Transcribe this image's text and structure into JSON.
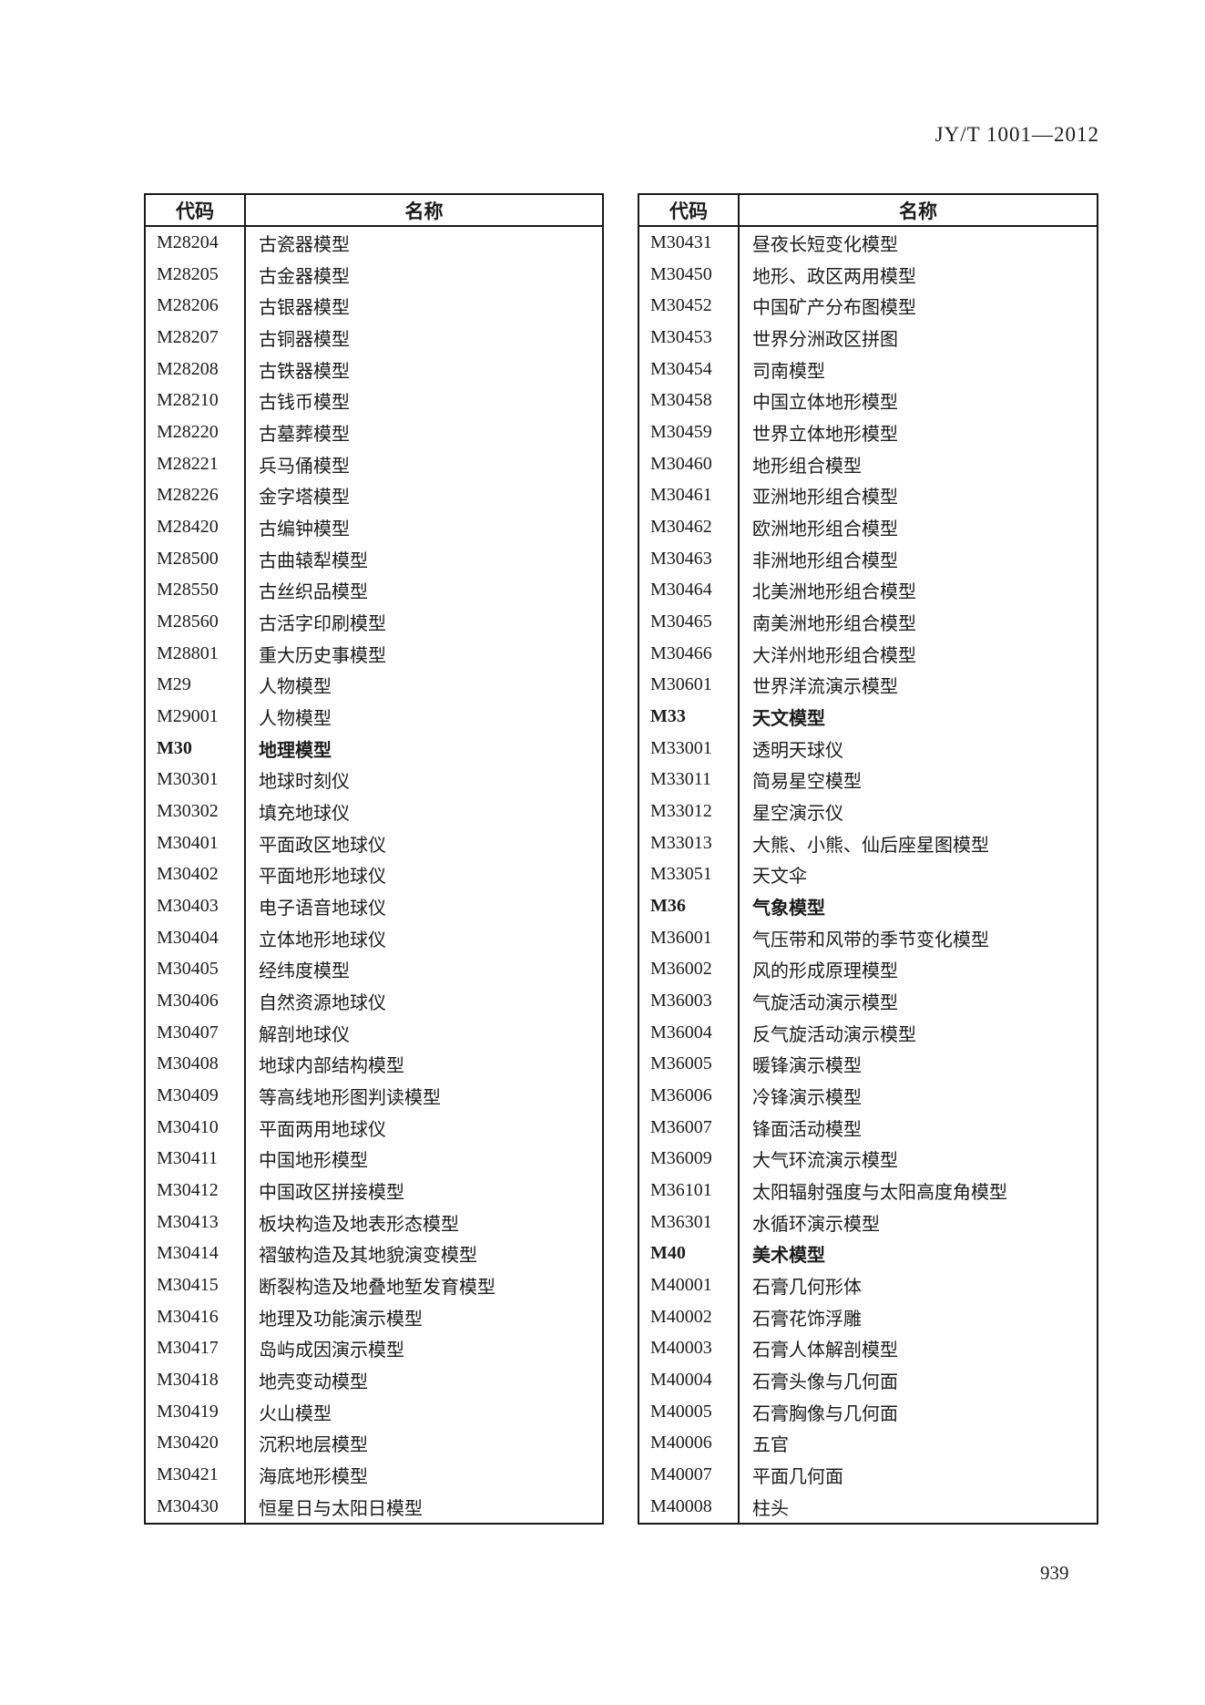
{
  "header": {
    "doc_number": "JY/T 1001—2012"
  },
  "footer": {
    "page_number": "939"
  },
  "tables": [
    {
      "headers": {
        "code": "代码",
        "name": "名称"
      },
      "rows": [
        {
          "code": "M28204",
          "name": "古瓷器模型",
          "bold": false
        },
        {
          "code": "M28205",
          "name": "古金器模型",
          "bold": false
        },
        {
          "code": "M28206",
          "name": "古银器模型",
          "bold": false
        },
        {
          "code": "M28207",
          "name": "古铜器模型",
          "bold": false
        },
        {
          "code": "M28208",
          "name": "古铁器模型",
          "bold": false
        },
        {
          "code": "M28210",
          "name": "古钱币模型",
          "bold": false
        },
        {
          "code": "M28220",
          "name": "古墓葬模型",
          "bold": false
        },
        {
          "code": "M28221",
          "name": "兵马俑模型",
          "bold": false
        },
        {
          "code": "M28226",
          "name": "金字塔模型",
          "bold": false
        },
        {
          "code": "M28420",
          "name": "古编钟模型",
          "bold": false
        },
        {
          "code": "M28500",
          "name": "古曲辕犁模型",
          "bold": false
        },
        {
          "code": "M28550",
          "name": "古丝织品模型",
          "bold": false
        },
        {
          "code": "M28560",
          "name": "古活字印刷模型",
          "bold": false
        },
        {
          "code": "M28801",
          "name": "重大历史事模型",
          "bold": false
        },
        {
          "code": "M29",
          "name": "人物模型",
          "bold": false
        },
        {
          "code": "M29001",
          "name": "人物模型",
          "bold": false
        },
        {
          "code": "M30",
          "name": "地理模型",
          "bold": true
        },
        {
          "code": "M30301",
          "name": "地球时刻仪",
          "bold": false
        },
        {
          "code": "M30302",
          "name": "填充地球仪",
          "bold": false
        },
        {
          "code": "M30401",
          "name": "平面政区地球仪",
          "bold": false
        },
        {
          "code": "M30402",
          "name": "平面地形地球仪",
          "bold": false
        },
        {
          "code": "M30403",
          "name": "电子语音地球仪",
          "bold": false
        },
        {
          "code": "M30404",
          "name": "立体地形地球仪",
          "bold": false
        },
        {
          "code": "M30405",
          "name": "经纬度模型",
          "bold": false
        },
        {
          "code": "M30406",
          "name": "自然资源地球仪",
          "bold": false
        },
        {
          "code": "M30407",
          "name": "解剖地球仪",
          "bold": false
        },
        {
          "code": "M30408",
          "name": "地球内部结构模型",
          "bold": false
        },
        {
          "code": "M30409",
          "name": "等高线地形图判读模型",
          "bold": false
        },
        {
          "code": "M30410",
          "name": "平面两用地球仪",
          "bold": false
        },
        {
          "code": "M30411",
          "name": "中国地形模型",
          "bold": false
        },
        {
          "code": "M30412",
          "name": "中国政区拼接模型",
          "bold": false
        },
        {
          "code": "M30413",
          "name": "板块构造及地表形态模型",
          "bold": false
        },
        {
          "code": "M30414",
          "name": "褶皱构造及其地貌演变模型",
          "bold": false
        },
        {
          "code": "M30415",
          "name": "断裂构造及地叠地堑发育模型",
          "bold": false
        },
        {
          "code": "M30416",
          "name": "地理及功能演示模型",
          "bold": false
        },
        {
          "code": "M30417",
          "name": "岛屿成因演示模型",
          "bold": false
        },
        {
          "code": "M30418",
          "name": "地壳变动模型",
          "bold": false
        },
        {
          "code": "M30419",
          "name": "火山模型",
          "bold": false
        },
        {
          "code": "M30420",
          "name": "沉积地层模型",
          "bold": false
        },
        {
          "code": "M30421",
          "name": "海底地形模型",
          "bold": false
        },
        {
          "code": "M30430",
          "name": "恒星日与太阳日模型",
          "bold": false
        }
      ]
    },
    {
      "headers": {
        "code": "代码",
        "name": "名称"
      },
      "rows": [
        {
          "code": "M30431",
          "name": "昼夜长短变化模型",
          "bold": false
        },
        {
          "code": "M30450",
          "name": "地形、政区两用模型",
          "bold": false
        },
        {
          "code": "M30452",
          "name": "中国矿产分布图模型",
          "bold": false
        },
        {
          "code": "M30453",
          "name": "世界分洲政区拼图",
          "bold": false
        },
        {
          "code": "M30454",
          "name": "司南模型",
          "bold": false
        },
        {
          "code": "M30458",
          "name": "中国立体地形模型",
          "bold": false
        },
        {
          "code": "M30459",
          "name": "世界立体地形模型",
          "bold": false
        },
        {
          "code": "M30460",
          "name": "地形组合模型",
          "bold": false
        },
        {
          "code": "M30461",
          "name": "亚洲地形组合模型",
          "bold": false
        },
        {
          "code": "M30462",
          "name": "欧洲地形组合模型",
          "bold": false
        },
        {
          "code": "M30463",
          "name": "非洲地形组合模型",
          "bold": false
        },
        {
          "code": "M30464",
          "name": "北美洲地形组合模型",
          "bold": false
        },
        {
          "code": "M30465",
          "name": "南美洲地形组合模型",
          "bold": false
        },
        {
          "code": "M30466",
          "name": "大洋州地形组合模型",
          "bold": false
        },
        {
          "code": "M30601",
          "name": "世界洋流演示模型",
          "bold": false
        },
        {
          "code": "M33",
          "name": "天文模型",
          "bold": true
        },
        {
          "code": "M33001",
          "name": "透明天球仪",
          "bold": false
        },
        {
          "code": "M33011",
          "name": "简易星空模型",
          "bold": false
        },
        {
          "code": "M33012",
          "name": "星空演示仪",
          "bold": false
        },
        {
          "code": "M33013",
          "name": "大熊、小熊、仙后座星图模型",
          "bold": false
        },
        {
          "code": "M33051",
          "name": "天文伞",
          "bold": false
        },
        {
          "code": "M36",
          "name": "气象模型",
          "bold": true
        },
        {
          "code": "M36001",
          "name": "气压带和风带的季节变化模型",
          "bold": false
        },
        {
          "code": "M36002",
          "name": "风的形成原理模型",
          "bold": false
        },
        {
          "code": "M36003",
          "name": "气旋活动演示模型",
          "bold": false
        },
        {
          "code": "M36004",
          "name": "反气旋活动演示模型",
          "bold": false
        },
        {
          "code": "M36005",
          "name": "暖锋演示模型",
          "bold": false
        },
        {
          "code": "M36006",
          "name": "冷锋演示模型",
          "bold": false
        },
        {
          "code": "M36007",
          "name": "锋面活动模型",
          "bold": false
        },
        {
          "code": "M36009",
          "name": "大气环流演示模型",
          "bold": false
        },
        {
          "code": "M36101",
          "name": "太阳辐射强度与太阳高度角模型",
          "bold": false
        },
        {
          "code": "M36301",
          "name": "水循环演示模型",
          "bold": false
        },
        {
          "code": "M40",
          "name": "美术模型",
          "bold": true
        },
        {
          "code": "M40001",
          "name": "石膏几何形体",
          "bold": false
        },
        {
          "code": "M40002",
          "name": "石膏花饰浮雕",
          "bold": false
        },
        {
          "code": "M40003",
          "name": "石膏人体解剖模型",
          "bold": false
        },
        {
          "code": "M40004",
          "name": "石膏头像与几何面",
          "bold": false
        },
        {
          "code": "M40005",
          "name": "石膏胸像与几何面",
          "bold": false
        },
        {
          "code": "M40006",
          "name": "五官",
          "bold": false
        },
        {
          "code": "M40007",
          "name": "平面几何面",
          "bold": false
        },
        {
          "code": "M40008",
          "name": "柱头",
          "bold": false
        }
      ]
    }
  ]
}
